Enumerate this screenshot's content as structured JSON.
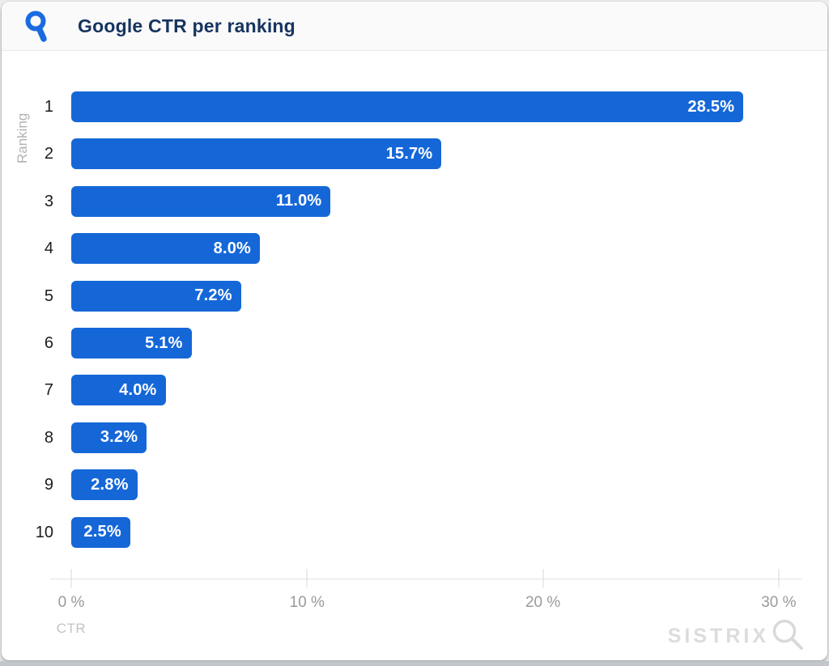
{
  "header": {
    "title": "Google CTR per ranking"
  },
  "chart_data": {
    "type": "bar",
    "orientation": "horizontal",
    "title": "Google CTR per ranking",
    "categories": [
      "1",
      "2",
      "3",
      "4",
      "5",
      "6",
      "7",
      "8",
      "9",
      "10"
    ],
    "values": [
      28.5,
      15.7,
      11.0,
      8.0,
      7.2,
      5.1,
      4.0,
      3.2,
      2.8,
      2.5
    ],
    "value_labels": [
      "28.5%",
      "15.7%",
      "11.0%",
      "8.0%",
      "7.2%",
      "5.1%",
      "4.0%",
      "3.2%",
      "2.8%",
      "2.5%"
    ],
    "xlabel": "CTR",
    "ylabel": "Ranking",
    "xlim": [
      0,
      30
    ],
    "x_ticks": [
      "0 %",
      "10 %",
      "20 %",
      "30 %"
    ],
    "x_tick_values": [
      0,
      10,
      20,
      30
    ],
    "bar_color": "#1567d8",
    "grid": false,
    "legend": null
  },
  "watermark": {
    "text": "SISTRIX"
  },
  "icons": {
    "header_icon": "magnifier-icon",
    "watermark_icon": "magnifier-icon"
  }
}
